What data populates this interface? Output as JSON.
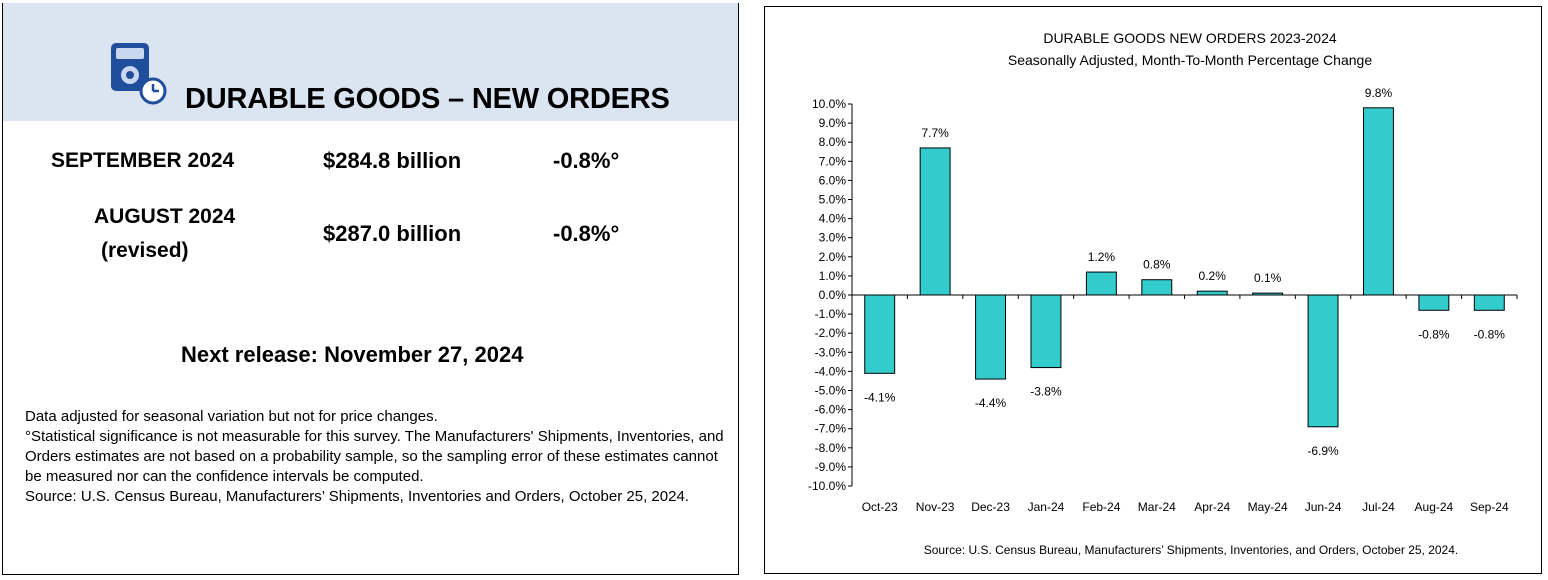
{
  "left": {
    "title": "DURABLE GOODS – NEW ORDERS",
    "icon": "calculator-clock-icon",
    "rows": [
      {
        "label_line1": "SEPTEMBER 2024",
        "value": "$284.8 billion",
        "change": "-0.8%°"
      },
      {
        "label_line1": "AUGUST 2024",
        "label_line2": "(revised)",
        "value": "$287.0 billion",
        "change": "-0.8%°"
      }
    ],
    "next_release": "Next release: November 27, 2024",
    "notes": [
      "Data adjusted for seasonal variation but not for price changes.",
      "°Statistical significance is not measurable for this survey.  The Manufacturers' Shipments, Inventories, and Orders estimates are not based on a probability sample, so the sampling error of these estimates cannot be measured nor can the confidence intervals be computed.",
      "Source: U.S. Census Bureau, Manufacturers’ Shipments, Inventories and Orders, October 25, 2024."
    ],
    "colors": {
      "header_bg": "#dbe4f1",
      "icon": "#1f4e9c"
    }
  },
  "chart_data": {
    "type": "bar",
    "title": "DURABLE GOODS NEW ORDERS 2023-2024",
    "subtitle": "Seasonally Adjusted,  Month-To-Month Percentage Change",
    "categories": [
      "Oct-23",
      "Nov-23",
      "Dec-23",
      "Jan-24",
      "Feb-24",
      "Mar-24",
      "Apr-24",
      "May-24",
      "Jun-24",
      "Jul-24",
      "Aug-24",
      "Sep-24"
    ],
    "values": [
      -4.1,
      7.7,
      -4.4,
      -3.8,
      1.2,
      0.8,
      0.2,
      0.1,
      -6.9,
      9.8,
      -0.8,
      -0.8
    ],
    "data_labels": [
      "-4.1%",
      "7.7%",
      "-4.4%",
      "-3.8%",
      "1.2%",
      "0.8%",
      "0.2%",
      "0.1%",
      "-6.9%",
      "9.8%",
      "-0.8%",
      "-0.8%"
    ],
    "ylim": [
      -10,
      10
    ],
    "y_tick_step": 1,
    "y_tick_format": "percent_1dp",
    "xlabel": "",
    "ylabel": "",
    "grid": false,
    "bar_color": "#33cccc",
    "source": "Source: U.S. Census Bureau, Manufacturers’ Shipments, Inventories, and Orders, October 25, 2024."
  }
}
